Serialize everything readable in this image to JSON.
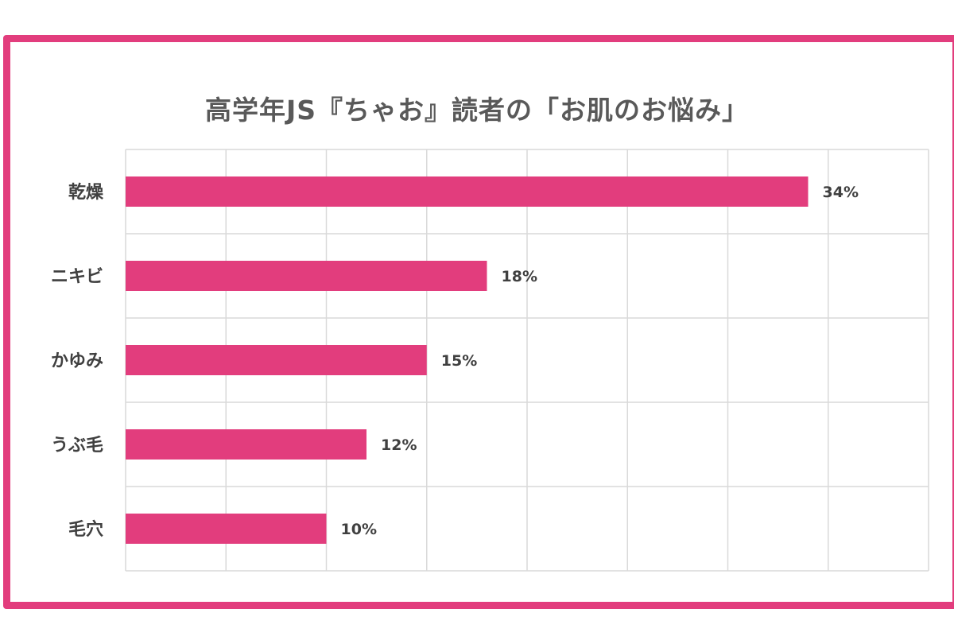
{
  "chart_data": {
    "type": "bar",
    "orientation": "horizontal",
    "title": "高学年JS『ちゃお』読者の「お肌のお悩み」",
    "categories": [
      "乾燥",
      "ニキビ",
      "かゆみ",
      "うぶ毛",
      "毛穴"
    ],
    "values": [
      34,
      18,
      15,
      12,
      10
    ],
    "value_labels": [
      "34%",
      "18%",
      "15%",
      "12%",
      "10%"
    ],
    "xlim": [
      0,
      40
    ],
    "grid": true,
    "legend": "none"
  },
  "colors": {
    "bar": "#e23d7d",
    "frame": "#e23d7d",
    "grid": "#d9d9d9",
    "text": "#404040",
    "title": "#595959"
  }
}
